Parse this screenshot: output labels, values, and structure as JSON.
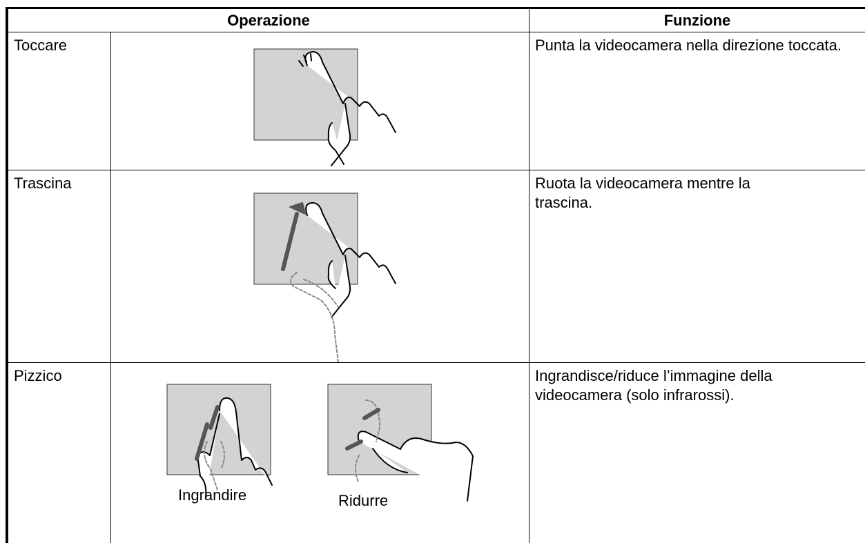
{
  "table": {
    "header": [
      "Operazione",
      "Funzione"
    ],
    "rows": [
      {
        "operation": "Toccare",
        "description": "Punta la videocamera nella direzione toccata."
      },
      {
        "operation": "Trascina",
        "description": "Ruota la videocamera mentre la trascina."
      },
      {
        "operation": "Pizzico",
        "description": "Ingrandisce/riduce l’immagine della videocamera (solo infrarossi).",
        "captions": [
          "Ingrandire",
          "Ridurre"
        ]
      }
    ]
  }
}
